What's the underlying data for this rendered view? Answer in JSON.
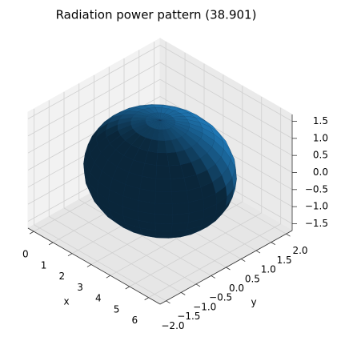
{
  "chart_data": {
    "type": "surface3d",
    "title": "Radiation power pattern (38.901)",
    "xlabel": "x",
    "ylabel": "y",
    "color": "#1f77b4",
    "xlim": [
      -0.3,
      6.6
    ],
    "ylim": [
      -2.2,
      2.2
    ],
    "zlim": [
      -1.7,
      1.7
    ],
    "xticks": [
      0,
      1,
      2,
      3,
      4,
      5,
      6
    ],
    "yticks": [
      {
        "value": -2,
        "label": "−2.0"
      },
      {
        "value": -1.5,
        "label": "−1.5"
      },
      {
        "value": -1,
        "label": "−1.0"
      },
      {
        "value": -0.5,
        "label": "−0.5"
      },
      {
        "value": 0,
        "label": "0.0"
      },
      {
        "value": 0.5,
        "label": "0.5"
      },
      {
        "value": 1,
        "label": "1.0"
      },
      {
        "value": 1.5,
        "label": "1.5"
      },
      {
        "value": 2,
        "label": "2.0"
      }
    ],
    "zticks": [
      {
        "value": -1.5,
        "label": "−1.5"
      },
      {
        "value": -1,
        "label": "−1.0"
      },
      {
        "value": -0.5,
        "label": "−0.5"
      },
      {
        "value": 0,
        "label": "0.0"
      },
      {
        "value": 0.5,
        "label": "0.5"
      },
      {
        "value": 1,
        "label": "1.0"
      },
      {
        "value": 1.5,
        "label": "1.5"
      }
    ]
  }
}
